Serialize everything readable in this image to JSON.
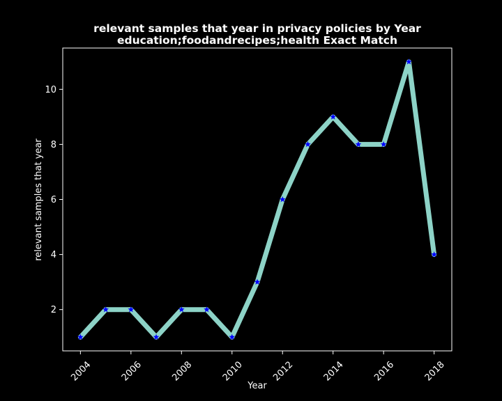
{
  "chart_data": {
    "type": "line",
    "title": "relevant samples that year in privacy policies by Year",
    "subtitle": "education;foodandrecipes;health Exact Match",
    "xlabel": "Year",
    "ylabel": "relevant samples that year",
    "x": [
      2004,
      2005,
      2006,
      2007,
      2008,
      2009,
      2010,
      2011,
      2012,
      2013,
      2014,
      2015,
      2016,
      2017,
      2018
    ],
    "series": [
      {
        "values": [
          1,
          2,
          2,
          1,
          2,
          2,
          1,
          3,
          6,
          8,
          9,
          8,
          8,
          11,
          4
        ]
      }
    ],
    "xticks": [
      2004,
      2006,
      2008,
      2010,
      2012,
      2014,
      2016,
      2018
    ],
    "yticks": [
      2,
      4,
      6,
      8,
      10
    ],
    "xlim": [
      2003.3,
      2018.7
    ],
    "ylim": [
      0.5,
      11.5
    ],
    "grid": false,
    "line_color": "#8dd3c7",
    "marker_color": "#0000ff",
    "marker": "star",
    "background": "#000000",
    "foreground": "#ffffff"
  }
}
